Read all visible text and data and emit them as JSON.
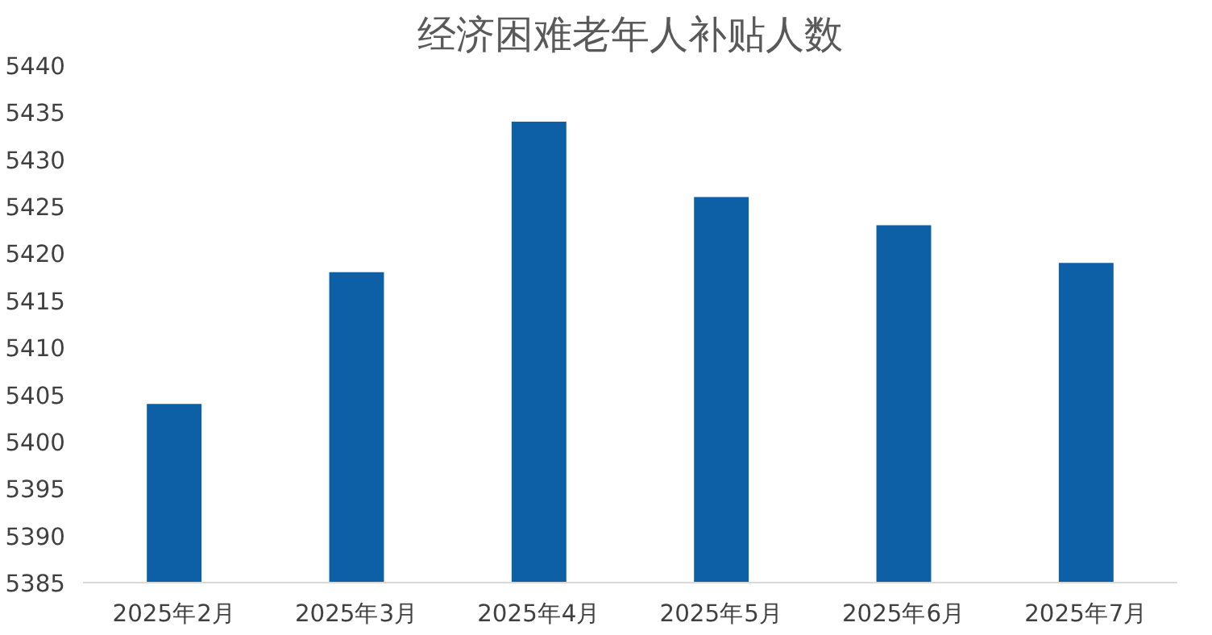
{
  "chart_data": {
    "type": "bar",
    "title": "经济困难老年人补贴人数",
    "categories": [
      "2025年2月",
      "2025年3月",
      "2025年4月",
      "2025年5月",
      "2025年6月",
      "2025年7月"
    ],
    "values": [
      5404,
      5418,
      5434,
      5426,
      5423,
      5419
    ],
    "color": "#0d5fa6",
    "ylim": [
      5385,
      5440
    ],
    "yticks": [
      5385,
      5390,
      5395,
      5400,
      5405,
      5410,
      5415,
      5420,
      5425,
      5430,
      5435,
      5440
    ],
    "grid": false
  }
}
